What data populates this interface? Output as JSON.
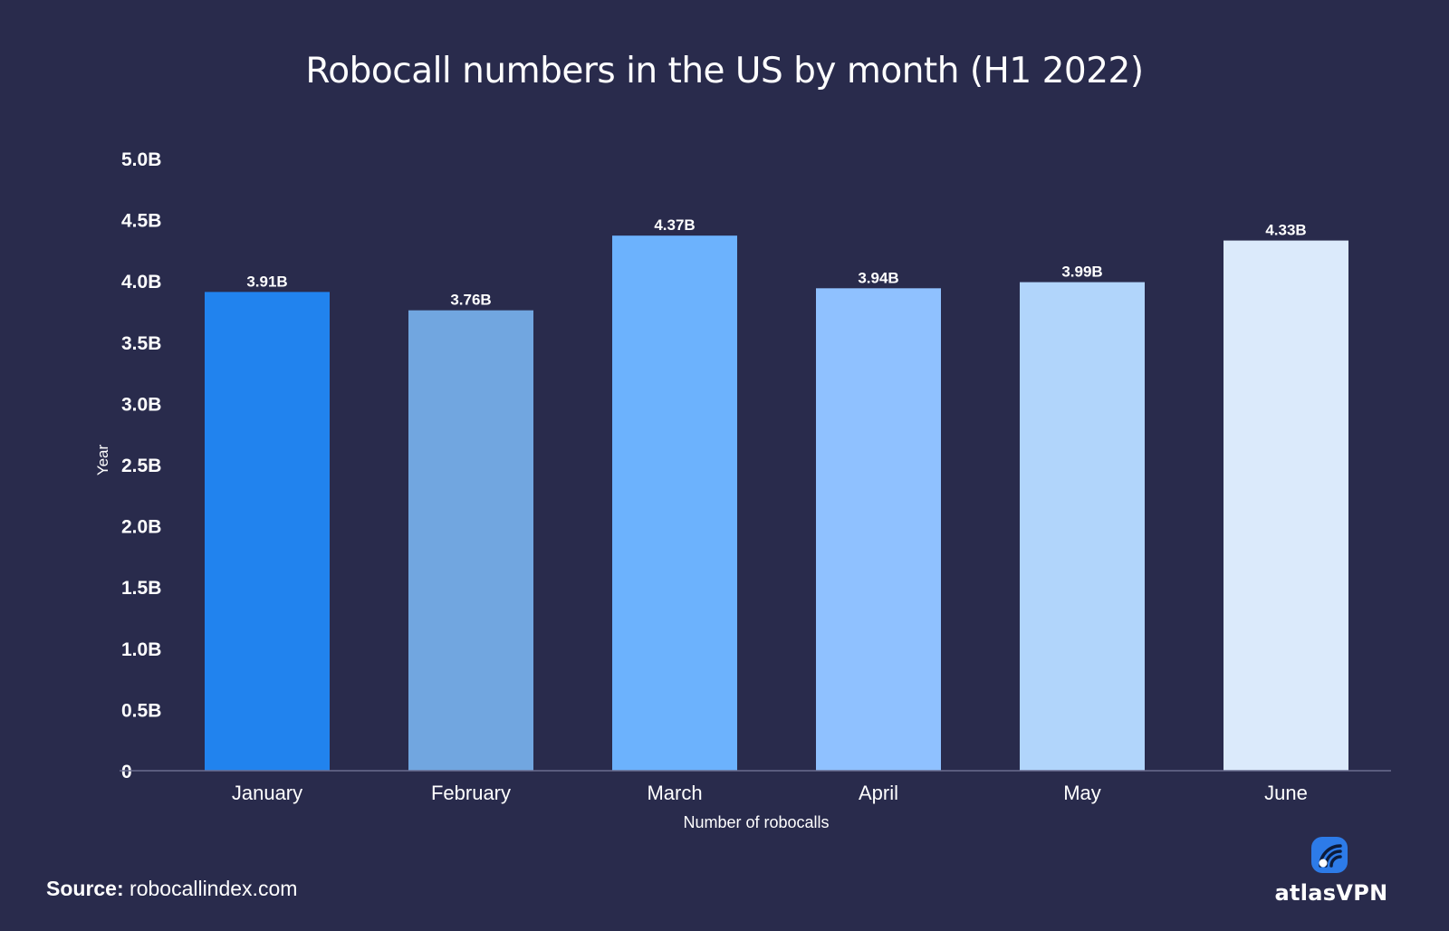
{
  "chart_data": {
    "type": "bar",
    "title": "Robocall numbers in the US by month (H1 2022)",
    "xlabel": "Number of robocalls",
    "ylabel": "Year",
    "categories": [
      "January",
      "February",
      "March",
      "April",
      "May",
      "June"
    ],
    "values": [
      3.91,
      3.76,
      4.37,
      3.94,
      3.99,
      4.33
    ],
    "value_labels": [
      "3.91B",
      "3.76B",
      "4.37B",
      "3.94B",
      "3.99B",
      "4.33B"
    ],
    "bar_colors": [
      "#2183ee",
      "#71a6e0",
      "#6cb2fd",
      "#8fc1ff",
      "#b1d5fb",
      "#dbeafb"
    ],
    "y_ticks": [
      0,
      0.5,
      1.0,
      1.5,
      2.0,
      2.5,
      3.0,
      3.5,
      4.0,
      4.5,
      5.0
    ],
    "y_tick_labels": [
      "0",
      "0.5B",
      "1.0B",
      "1.5B",
      "2.0B",
      "2.5B",
      "3.0B",
      "3.5B",
      "4.0B",
      "4.5B",
      "5.0B"
    ],
    "ylim": [
      0,
      5.0
    ],
    "grid": false,
    "legend": "none"
  },
  "footer": {
    "source_label": "Source:",
    "source_value": " robocallindex.com"
  },
  "logo": {
    "text": "atlasVPN",
    "icon": "atlasvpn-logo-icon"
  },
  "colors": {
    "background": "#292b4c",
    "text": "#ffffff",
    "axis": "#6a6d8f",
    "logo_accent": "#2d7be8"
  }
}
